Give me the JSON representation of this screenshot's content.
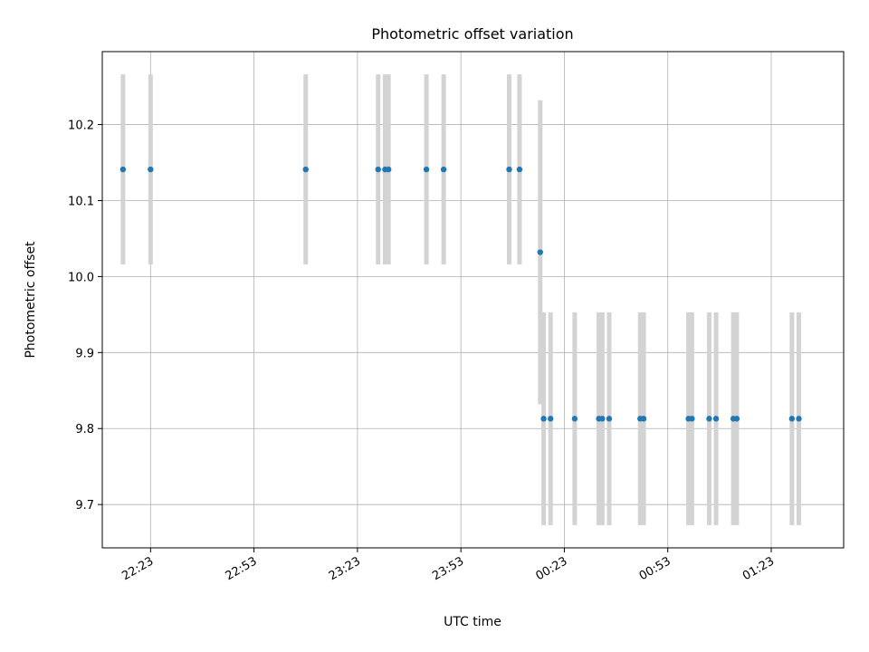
{
  "chart_data": {
    "type": "scatter",
    "title": "Photometric offset variation",
    "xlabel": "UTC time",
    "ylabel": "Photometric offset",
    "x_tick_labels": [
      "22:23",
      "22:53",
      "23:23",
      "23:53",
      "00:23",
      "00:53",
      "01:23"
    ],
    "y_tick_labels": [
      "9.7",
      "9.8",
      "9.9",
      "10.0",
      "10.1",
      "10.2"
    ],
    "y_ticks": [
      9.7,
      9.8,
      9.9,
      10.0,
      10.1,
      10.2
    ],
    "ylim": [
      9.643,
      10.296
    ],
    "xlim": [
      "22:09",
      "01:44"
    ],
    "grid": true,
    "error_bar_color": "#d3d3d3",
    "marker_color": "#1f77b4",
    "points": [
      {
        "x": "22:15",
        "y": 10.141,
        "yerr": 0.125
      },
      {
        "x": "22:23",
        "y": 10.141,
        "yerr": 0.125
      },
      {
        "x": "23:08",
        "y": 10.141,
        "yerr": 0.125
      },
      {
        "x": "23:29",
        "y": 10.141,
        "yerr": 0.125
      },
      {
        "x": "23:31",
        "y": 10.141,
        "yerr": 0.125
      },
      {
        "x": "23:32",
        "y": 10.141,
        "yerr": 0.125
      },
      {
        "x": "23:43",
        "y": 10.141,
        "yerr": 0.125
      },
      {
        "x": "23:48",
        "y": 10.141,
        "yerr": 0.125
      },
      {
        "x": "00:07",
        "y": 10.141,
        "yerr": 0.125
      },
      {
        "x": "00:10",
        "y": 10.141,
        "yerr": 0.125
      },
      {
        "x": "00:16",
        "y": 10.032,
        "yerr": 0.2
      },
      {
        "x": "00:17",
        "y": 9.813,
        "yerr": 0.14
      },
      {
        "x": "00:19",
        "y": 9.813,
        "yerr": 0.14
      },
      {
        "x": "00:26",
        "y": 9.813,
        "yerr": 0.14
      },
      {
        "x": "00:33",
        "y": 9.813,
        "yerr": 0.14
      },
      {
        "x": "00:34",
        "y": 9.813,
        "yerr": 0.14
      },
      {
        "x": "00:36",
        "y": 9.813,
        "yerr": 0.14
      },
      {
        "x": "00:45",
        "y": 9.813,
        "yerr": 0.14
      },
      {
        "x": "00:46",
        "y": 9.813,
        "yerr": 0.14
      },
      {
        "x": "00:59",
        "y": 9.813,
        "yerr": 0.14
      },
      {
        "x": "01:00",
        "y": 9.813,
        "yerr": 0.14
      },
      {
        "x": "01:05",
        "y": 9.813,
        "yerr": 0.14
      },
      {
        "x": "01:07",
        "y": 9.813,
        "yerr": 0.14
      },
      {
        "x": "01:12",
        "y": 9.813,
        "yerr": 0.14
      },
      {
        "x": "01:13",
        "y": 9.813,
        "yerr": 0.14
      },
      {
        "x": "01:29",
        "y": 9.813,
        "yerr": 0.14
      },
      {
        "x": "01:31",
        "y": 9.813,
        "yerr": 0.14
      }
    ]
  }
}
